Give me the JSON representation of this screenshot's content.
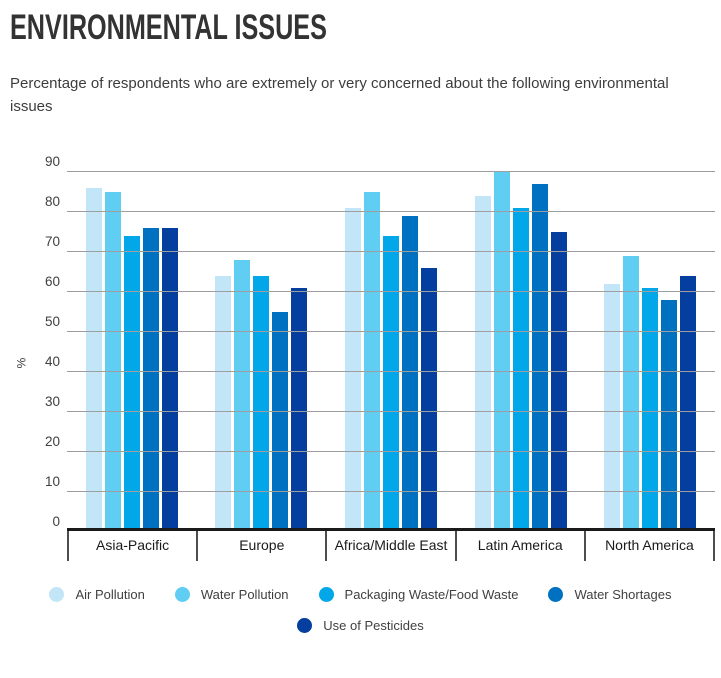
{
  "page": {
    "title": "ENVIRONMENTAL ISSUES",
    "subtitle": "Percentage of respondents who are extremely or very concerned about the following environmental issues"
  },
  "chart_data": {
    "type": "bar",
    "title": "ENVIRONMENTAL ISSUES",
    "subtitle": "Percentage of respondents who are extremely or very concerned about the following environmental issues",
    "xlabel": "",
    "ylabel": "%",
    "ylim": [
      0,
      90
    ],
    "ytick_step": 10,
    "grid": true,
    "legend_position": "bottom",
    "axis_color": "#1a1a1a",
    "gridline_color": "#9e9e9e",
    "categories": [
      "Asia-Pacific",
      "Europe",
      "Africa/Middle East",
      "Latin America",
      "North America"
    ],
    "series": [
      {
        "name": "Air Pollution",
        "color": "#c2e6f8",
        "values": [
          85,
          63,
          80,
          83,
          61
        ]
      },
      {
        "name": "Water Pollution",
        "color": "#5fcef2",
        "values": [
          84,
          67,
          84,
          89,
          68
        ]
      },
      {
        "name": "Packaging Waste/Food Waste",
        "color": "#01a7e8",
        "values": [
          73,
          63,
          73,
          80,
          60
        ]
      },
      {
        "name": "Water Shortages",
        "color": "#0071c1",
        "values": [
          75,
          54,
          78,
          86,
          57
        ]
      },
      {
        "name": "Use of Pesticides",
        "color": "#043f9f",
        "values": [
          75,
          60,
          65,
          74,
          63
        ]
      }
    ]
  }
}
